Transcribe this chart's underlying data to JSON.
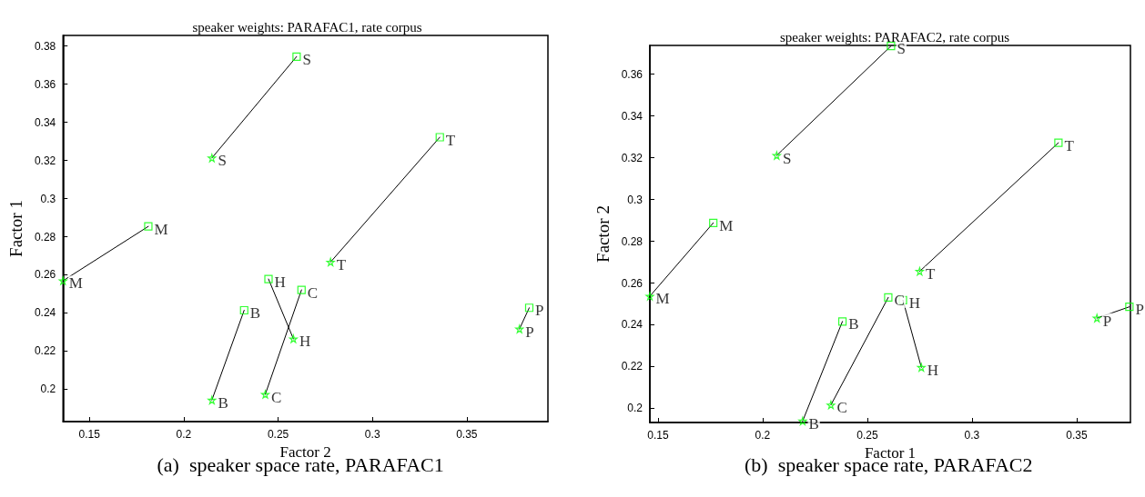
{
  "chart_data": [
    {
      "type": "scatter",
      "title": "speaker weights: PARAFAC1, rate corpus",
      "xlabel": "Factor 2",
      "ylabel": "Factor 1",
      "annotations": [
        "(a)  speaker space rate, PARAFAC1"
      ],
      "xlim": [
        0.136,
        0.393
      ],
      "ylim": [
        0.183,
        0.3856
      ],
      "xticks": [
        0.15,
        0.2,
        0.25,
        0.3,
        0.35
      ],
      "yticks": [
        0.2,
        0.22,
        0.24,
        0.26,
        0.28,
        0.3,
        0.32,
        0.34,
        0.36,
        0.38
      ],
      "grid": false,
      "series": [
        {
          "type": "line",
          "color": "#000000",
          "marker": "none",
          "line_style": "solid",
          "x": [
            0.2598,
            0.2149
          ],
          "values": [
            0.3745,
            0.3213
          ]
        },
        {
          "type": "line",
          "color": "#000000",
          "marker": "none",
          "line_style": "solid",
          "x": [
            0.1812,
            0.136
          ],
          "values": [
            0.2854,
            0.2569
          ]
        },
        {
          "type": "line",
          "color": "#000000",
          "marker": "none",
          "line_style": "solid",
          "x": [
            0.3357,
            0.2778
          ],
          "values": [
            0.3322,
            0.2667
          ]
        },
        {
          "type": "line",
          "color": "#000000",
          "marker": "none",
          "line_style": "solid",
          "x": [
            0.2449,
            0.2581
          ],
          "values": [
            0.2578,
            0.2264
          ]
        },
        {
          "type": "line",
          "color": "#000000",
          "marker": "none",
          "line_style": "solid",
          "x": [
            0.2624,
            0.2432
          ],
          "values": [
            0.2521,
            0.1973
          ]
        },
        {
          "type": "line",
          "color": "#000000",
          "marker": "none",
          "line_style": "solid",
          "x": [
            0.232,
            0.2149
          ],
          "values": [
            0.2414,
            0.1943
          ]
        },
        {
          "type": "line",
          "color": "#000000",
          "marker": "none",
          "line_style": "solid",
          "x": [
            0.3831,
            0.3779
          ],
          "values": [
            0.2427,
            0.2316
          ]
        },
        {
          "type": "scatter",
          "color": "#00ff00",
          "marker": "square",
          "x": [
            0.2598,
            0.1812,
            0.3357,
            0.2449,
            0.2624,
            0.232,
            0.3831
          ],
          "values": [
            0.3745,
            0.2854,
            0.3322,
            0.2578,
            0.2521,
            0.2414,
            0.2427
          ],
          "value_labels": [
            "S",
            "M",
            "T",
            "H",
            "C",
            "B",
            "P"
          ]
        },
        {
          "type": "scatter",
          "color": "#00ff00",
          "marker": "star",
          "x": [
            0.2149,
            0.136,
            0.2778,
            0.2581,
            0.2432,
            0.2149,
            0.3779
          ],
          "values": [
            0.3213,
            0.2569,
            0.2667,
            0.2264,
            0.1973,
            0.1943,
            0.2316
          ],
          "value_labels": [
            "S",
            "M",
            "T",
            "H",
            "C",
            "B",
            "P"
          ]
        }
      ]
    },
    {
      "type": "scatter",
      "title": "speaker weights: PARAFAC2, rate corpus",
      "xlabel": "Factor 1",
      "ylabel": "Factor 2",
      "annotations": [
        "(b)  speaker space rate, PARAFAC2"
      ],
      "xlim": [
        0.1461,
        0.3757
      ],
      "ylim": [
        0.1932,
        0.3738
      ],
      "xticks": [
        0.15,
        0.2,
        0.25,
        0.3,
        0.35
      ],
      "yticks": [
        0.2,
        0.22,
        0.24,
        0.26,
        0.28,
        0.3,
        0.32,
        0.34,
        0.36
      ],
      "grid": false,
      "series": [
        {
          "type": "line",
          "color": "#000000",
          "marker": "none",
          "line_style": "solid",
          "x": [
            0.2613,
            0.2067
          ],
          "values": [
            0.3735,
            0.3211
          ]
        },
        {
          "type": "line",
          "color": "#000000",
          "marker": "none",
          "line_style": "solid",
          "x": [
            0.1764,
            0.1461
          ],
          "values": [
            0.2888,
            0.2537
          ]
        },
        {
          "type": "line",
          "color": "#000000",
          "marker": "none",
          "line_style": "solid",
          "x": [
            0.3413,
            0.275
          ],
          "values": [
            0.3272,
            0.2656
          ]
        },
        {
          "type": "line",
          "color": "#000000",
          "marker": "none",
          "line_style": "solid",
          "x": [
            0.267,
            0.2758
          ],
          "values": [
            0.2518,
            0.2196
          ]
        },
        {
          "type": "line",
          "color": "#000000",
          "marker": "none",
          "line_style": "solid",
          "x": [
            0.26,
            0.2326
          ],
          "values": [
            0.2531,
            0.2016
          ]
        },
        {
          "type": "line",
          "color": "#000000",
          "marker": "none",
          "line_style": "solid",
          "x": [
            0.2381,
            0.2191
          ],
          "values": [
            0.2416,
            0.1939
          ]
        },
        {
          "type": "line",
          "color": "#000000",
          "marker": "none",
          "line_style": "solid",
          "x": [
            0.3752,
            0.3597
          ],
          "values": [
            0.2486,
            0.2432
          ]
        },
        {
          "type": "scatter",
          "color": "#00ff00",
          "marker": "square",
          "x": [
            0.2613,
            0.1764,
            0.3413,
            0.267,
            0.26,
            0.2381,
            0.3752
          ],
          "values": [
            0.3735,
            0.2888,
            0.3272,
            0.2518,
            0.2531,
            0.2416,
            0.2486
          ],
          "value_labels": [
            "S",
            "M",
            "T",
            "H",
            "C",
            "B",
            "P"
          ]
        },
        {
          "type": "scatter",
          "color": "#00ff00",
          "marker": "star",
          "x": [
            0.2067,
            0.1461,
            0.275,
            0.2758,
            0.2326,
            0.2191,
            0.3597
          ],
          "values": [
            0.3211,
            0.2537,
            0.2656,
            0.2196,
            0.2016,
            0.1939,
            0.2432
          ],
          "value_labels": [
            "S",
            "M",
            "T",
            "H",
            "C",
            "B",
            "P"
          ]
        }
      ]
    }
  ]
}
